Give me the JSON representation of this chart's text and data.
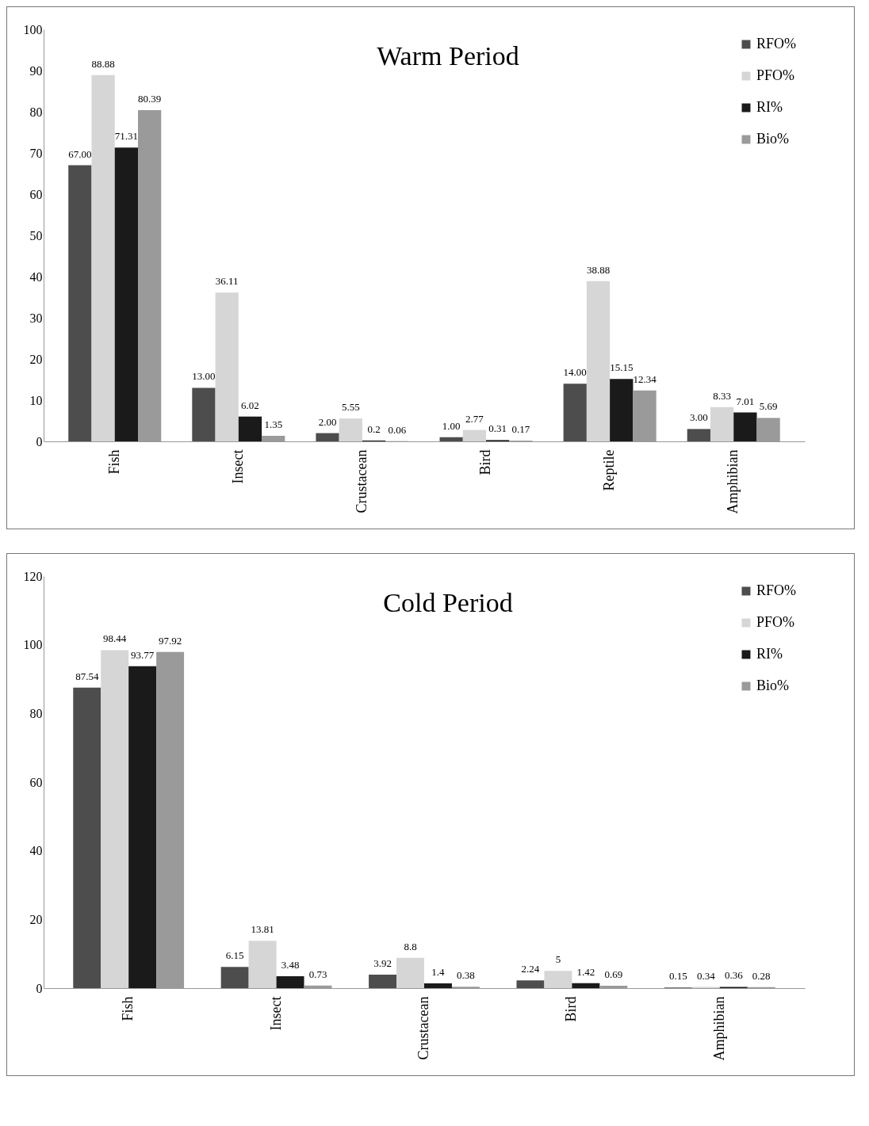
{
  "chart_data": [
    {
      "type": "bar",
      "title": "Warm Period",
      "categories": [
        "Fish",
        "Insect",
        "Crustacean",
        "Bird",
        "Reptile",
        "Amphibian"
      ],
      "ylim": [
        0,
        100
      ],
      "yticks": [
        0,
        10,
        20,
        30,
        40,
        50,
        60,
        70,
        80,
        90,
        100
      ],
      "grid": false,
      "legend": "top right",
      "data_labels": true,
      "series": [
        {
          "name": "RFO%",
          "color": "#4d4d4d",
          "values": [
            67.0,
            13.0,
            2.0,
            1.0,
            14.0,
            3.0
          ],
          "value_labels": [
            "67.00",
            "13.00",
            "2.00",
            "1.00",
            "14.00",
            "3.00"
          ]
        },
        {
          "name": "PFO%",
          "color": "#d6d6d6",
          "values": [
            88.88,
            36.11,
            5.55,
            2.77,
            38.88,
            8.33
          ],
          "value_labels": [
            "88.88",
            "36.11",
            "5.55",
            "2.77",
            "38.88",
            "8.33"
          ]
        },
        {
          "name": "RI%",
          "color": "#1a1a1a",
          "values": [
            71.31,
            6.02,
            0.2,
            0.31,
            15.15,
            7.01
          ],
          "value_labels": [
            "71.31",
            "6.02",
            "0.2",
            "0.31",
            "15.15",
            "7.01"
          ]
        },
        {
          "name": "Bio%",
          "color": "#9a9a9a",
          "values": [
            80.39,
            1.35,
            0.06,
            0.17,
            12.34,
            5.69
          ],
          "value_labels": [
            "80.39",
            "1.35",
            "0.06",
            "0.17",
            "12.34",
            "5.69"
          ]
        }
      ]
    },
    {
      "type": "bar",
      "title": "Cold Period",
      "categories": [
        "Fish",
        "Insect",
        "Crustacean",
        "Bird",
        "Amphibian"
      ],
      "ylim": [
        0,
        120
      ],
      "yticks": [
        0,
        20,
        40,
        60,
        80,
        100,
        120
      ],
      "grid": false,
      "legend": "top right",
      "data_labels": true,
      "series": [
        {
          "name": "RFO%",
          "color": "#4d4d4d",
          "values": [
            87.54,
            6.15,
            3.92,
            2.24,
            0.15
          ],
          "value_labels": [
            "87.54",
            "6.15",
            "3.92",
            "2.24",
            "0.15"
          ]
        },
        {
          "name": "PFO%",
          "color": "#d6d6d6",
          "values": [
            98.44,
            13.81,
            8.8,
            5,
            0.34
          ],
          "value_labels": [
            "98.44",
            "13.81",
            "8.8",
            "5",
            "0.34"
          ]
        },
        {
          "name": "RI%",
          "color": "#1a1a1a",
          "values": [
            93.77,
            3.48,
            1.4,
            1.42,
            0.36
          ],
          "value_labels": [
            "93.77",
            "3.48",
            "1.4",
            "1.42",
            "0.36"
          ]
        },
        {
          "name": "Bio%",
          "color": "#9a9a9a",
          "values": [
            97.92,
            0.73,
            0.38,
            0.69,
            0.28
          ],
          "value_labels": [
            "97.92",
            "0.73",
            "0.38",
            "0.69",
            "0.28"
          ]
        }
      ]
    }
  ]
}
